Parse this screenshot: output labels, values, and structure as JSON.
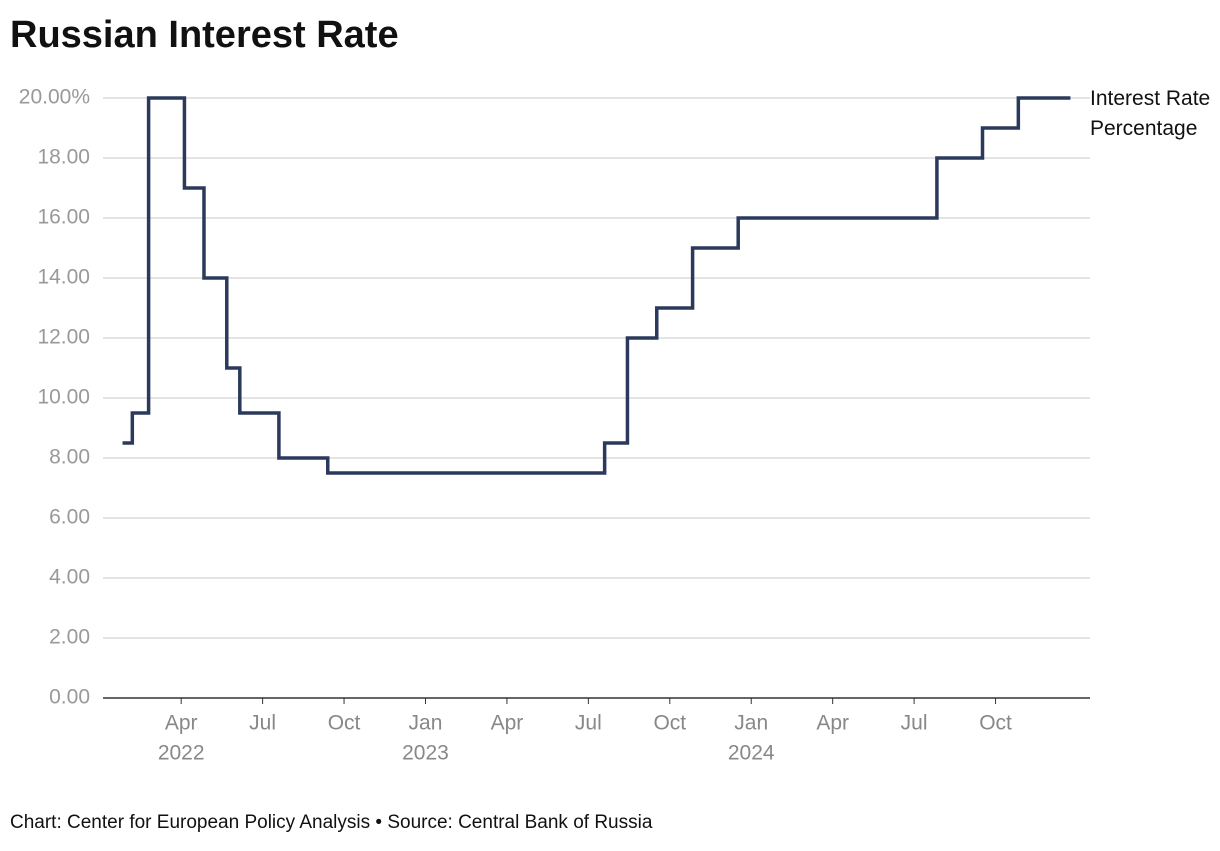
{
  "chart_data": {
    "type": "line",
    "step": "post",
    "title": "Russian Interest Rate",
    "footer": "Chart: Center for European Policy Analysis • Source: Central Bank of Russia",
    "x": [
      2022.07,
      2022.1,
      2022.15,
      2022.26,
      2022.32,
      2022.39,
      2022.43,
      2022.55,
      2022.7,
      2023.55,
      2023.62,
      2023.71,
      2023.82,
      2023.96,
      2024.57,
      2024.71,
      2024.82,
      2024.98
    ],
    "series": [
      {
        "name": "Interest Rate Percentage",
        "color": "#2b3a5c",
        "values": [
          8.5,
          9.5,
          20,
          17,
          14,
          11,
          9.5,
          8,
          7.5,
          8.5,
          12,
          13,
          15,
          16,
          18,
          19,
          20,
          20
        ]
      }
    ],
    "xlim": [
      2022.01,
      2025.04
    ],
    "xticks": [
      {
        "value": 2022.25,
        "label": "Apr",
        "sublabel": "2022"
      },
      {
        "value": 2022.5,
        "label": "Jul"
      },
      {
        "value": 2022.75,
        "label": "Oct"
      },
      {
        "value": 2023.0,
        "label": "Jan",
        "sublabel": "2023"
      },
      {
        "value": 2023.25,
        "label": "Apr"
      },
      {
        "value": 2023.5,
        "label": "Jul"
      },
      {
        "value": 2023.75,
        "label": "Oct"
      },
      {
        "value": 2024.0,
        "label": "Jan",
        "sublabel": "2024"
      },
      {
        "value": 2024.25,
        "label": "Apr"
      },
      {
        "value": 2024.5,
        "label": "Jul"
      },
      {
        "value": 2024.75,
        "label": "Oct"
      }
    ],
    "ylim": [
      0,
      20
    ],
    "yticks": [
      {
        "value": 0,
        "label": "0.00"
      },
      {
        "value": 2,
        "label": "2.00"
      },
      {
        "value": 4,
        "label": "4.00"
      },
      {
        "value": 6,
        "label": "6.00"
      },
      {
        "value": 8,
        "label": "8.00"
      },
      {
        "value": 10,
        "label": "10.00"
      },
      {
        "value": 12,
        "label": "12.00"
      },
      {
        "value": 14,
        "label": "14.00"
      },
      {
        "value": 16,
        "label": "16.00"
      },
      {
        "value": 18,
        "label": "18.00"
      },
      {
        "value": 20,
        "label": "20.00%"
      }
    ],
    "grid": true
  }
}
